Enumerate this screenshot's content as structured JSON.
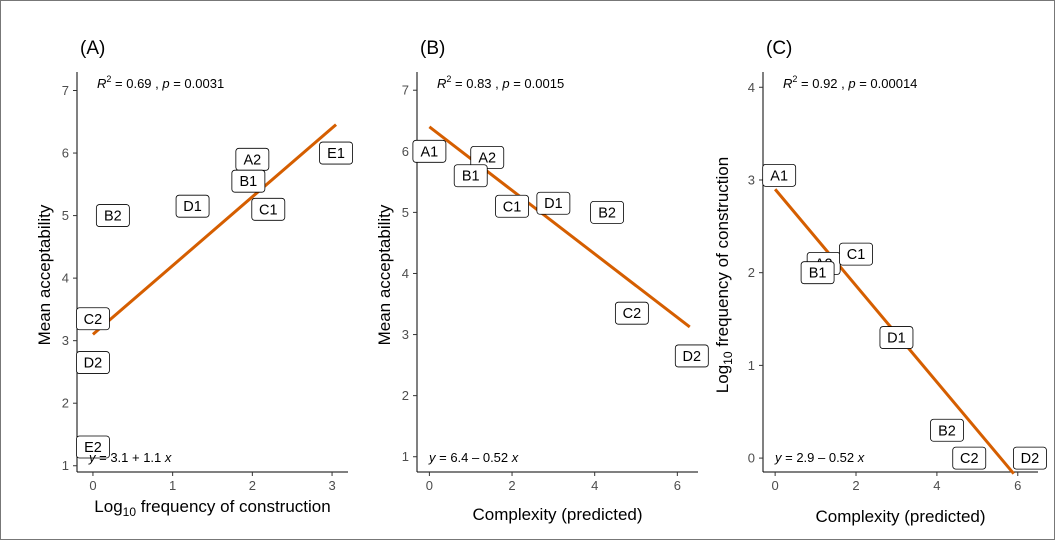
{
  "colors": {
    "fit_line": "#d55e00",
    "axis": "#000000",
    "tick_text": "#4d4d4d"
  },
  "chart_data": [
    {
      "type": "scatter",
      "panel_label": "(A)",
      "xlabel_main": "Log",
      "xlabel_sub": "10",
      "xlabel_rest": " frequency of construction",
      "ylabel_main": "Mean acceptability",
      "ylabel_sub": "",
      "ylabel_rest": "",
      "xlim": [
        -0.2,
        3.2
      ],
      "ylim": [
        0.9,
        7.2
      ],
      "xticks": [
        0,
        1,
        2,
        3
      ],
      "yticks": [
        1,
        2,
        3,
        4,
        5,
        6,
        7
      ],
      "points": [
        {
          "label": "E1",
          "x": 3.05,
          "y": 6.0
        },
        {
          "label": "A2",
          "x": 2.0,
          "y": 5.9
        },
        {
          "label": "B1",
          "x": 1.95,
          "y": 5.55
        },
        {
          "label": "C1",
          "x": 2.2,
          "y": 5.1
        },
        {
          "label": "D1",
          "x": 1.25,
          "y": 5.15
        },
        {
          "label": "B2",
          "x": 0.25,
          "y": 5.0
        },
        {
          "label": "C2",
          "x": 0.0,
          "y": 3.35
        },
        {
          "label": "D2",
          "x": 0.0,
          "y": 2.65
        },
        {
          "label": "E2",
          "x": 0.0,
          "y": 1.3
        }
      ],
      "fit": {
        "intercept": 3.1,
        "slope": 1.1,
        "x_range": [
          0.0,
          3.05
        ]
      },
      "stats": {
        "r2_prefix": "R",
        "r2_sup": "2",
        "r2_text": " = 0.69 , ",
        "p_italic": "p",
        "p_text": " = 0.0031"
      },
      "equation": {
        "y": "y",
        "text": " = 3.1 + 1.1 ",
        "x": "x"
      }
    },
    {
      "type": "scatter",
      "panel_label": "(B)",
      "xlabel_main": "Complexity (predicted)",
      "xlabel_sub": "",
      "xlabel_rest": "",
      "ylabel_main": "Mean acceptability",
      "ylabel_sub": "",
      "ylabel_rest": "",
      "xlim": [
        -0.3,
        6.5
      ],
      "ylim": [
        0.75,
        7.2
      ],
      "xticks": [
        0,
        2,
        4,
        6
      ],
      "yticks": [
        1,
        2,
        3,
        4,
        5,
        6,
        7
      ],
      "points": [
        {
          "label": "A1",
          "x": 0.0,
          "y": 6.0
        },
        {
          "label": "A2",
          "x": 1.4,
          "y": 5.9
        },
        {
          "label": "B1",
          "x": 1.0,
          "y": 5.6
        },
        {
          "label": "C1",
          "x": 2.0,
          "y": 5.1
        },
        {
          "label": "D1",
          "x": 3.0,
          "y": 5.15
        },
        {
          "label": "B2",
          "x": 4.3,
          "y": 5.0
        },
        {
          "label": "C2",
          "x": 4.9,
          "y": 3.35
        },
        {
          "label": "D2",
          "x": 6.35,
          "y": 2.65
        }
      ],
      "fit": {
        "intercept": 6.4,
        "slope": -0.52,
        "x_range": [
          0.0,
          6.3
        ]
      },
      "stats": {
        "r2_prefix": "R",
        "r2_sup": "2",
        "r2_text": " = 0.83 , ",
        "p_italic": "p",
        "p_text": " = 0.0015"
      },
      "equation": {
        "y": "y",
        "text": " = 6.4 – 0.52 ",
        "x": "x"
      }
    },
    {
      "type": "scatter",
      "panel_label": "(C)",
      "xlabel_main": "Complexity (predicted)",
      "xlabel_sub": "",
      "xlabel_rest": "",
      "ylabel_main": "Log",
      "ylabel_sub": "10",
      "ylabel_rest": " frequency of construction",
      "xlim": [
        -0.3,
        6.5
      ],
      "ylim": [
        -0.15,
        4.1
      ],
      "xticks": [
        0,
        2,
        4,
        6
      ],
      "yticks": [
        0,
        1,
        2,
        3,
        4
      ],
      "points": [
        {
          "label": "A2",
          "x": 1.2,
          "y": 2.1
        },
        {
          "label": "C1",
          "x": 2.0,
          "y": 2.2
        },
        {
          "label": "B1",
          "x": 1.05,
          "y": 2.0
        },
        {
          "label": "A1",
          "x": 0.1,
          "y": 3.05
        },
        {
          "label": "D1",
          "x": 3.0,
          "y": 1.3
        },
        {
          "label": "B2",
          "x": 4.25,
          "y": 0.3
        },
        {
          "label": "C2",
          "x": 4.8,
          "y": 0.0
        },
        {
          "label": "D2",
          "x": 6.3,
          "y": 0.0
        }
      ],
      "fit": {
        "intercept": 2.9,
        "slope": -0.52,
        "x_range": [
          0.0,
          5.9
        ]
      },
      "stats": {
        "r2_prefix": "R",
        "r2_sup": "2",
        "r2_text": " = 0.92 , ",
        "p_italic": "p",
        "p_text": " = 0.00014"
      },
      "equation": {
        "y": "y",
        "text": " = 2.9 – 0.52 ",
        "x": "x"
      }
    }
  ]
}
